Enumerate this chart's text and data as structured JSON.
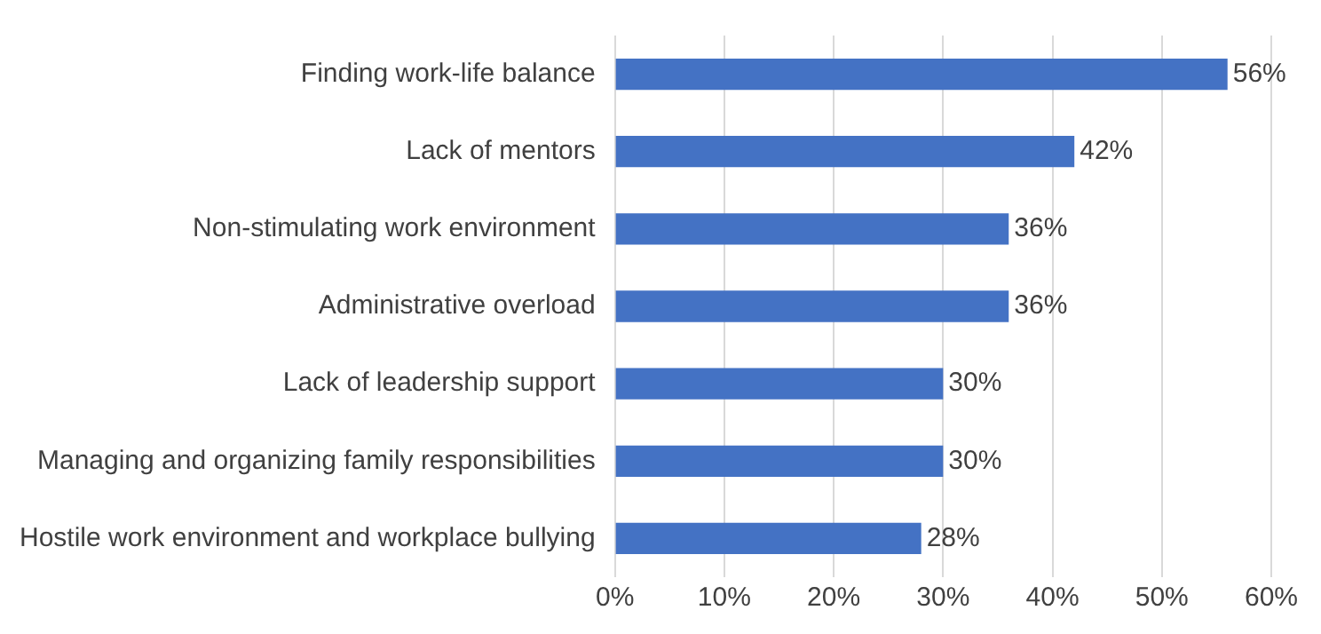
{
  "chart_data": {
    "type": "bar",
    "orientation": "horizontal",
    "categories": [
      "Finding work-life balance",
      "Lack of mentors",
      "Non-stimulating work environment",
      "Administrative overload",
      "Lack of leadership support",
      "Managing and organizing family responsibilities",
      "Hostile work environment and workplace bullying"
    ],
    "values": [
      56,
      42,
      36,
      36,
      30,
      30,
      28
    ],
    "value_labels": [
      "56%",
      "42%",
      "36%",
      "36%",
      "30%",
      "30%",
      "28%"
    ],
    "color": "#4472c4",
    "xlim": [
      0,
      60
    ],
    "xticks": [
      {
        "value": 0,
        "label": "0%"
      },
      {
        "value": 10,
        "label": "10%"
      },
      {
        "value": 20,
        "label": "20%"
      },
      {
        "value": 30,
        "label": "30%"
      },
      {
        "value": 40,
        "label": "40%"
      },
      {
        "value": 50,
        "label": "50%"
      },
      {
        "value": 60,
        "label": "60%"
      }
    ],
    "grid": "x"
  }
}
